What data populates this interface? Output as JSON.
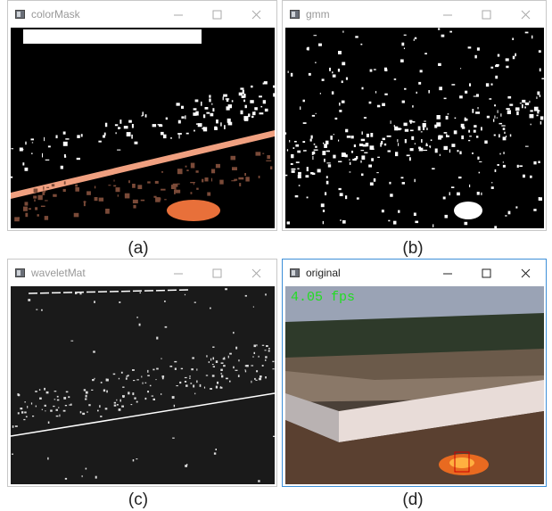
{
  "windows": [
    {
      "title": "colorMask",
      "caption": "(a)"
    },
    {
      "title": "gmm",
      "caption": "(b)"
    },
    {
      "title": "waveletMat",
      "caption": "(c)"
    },
    {
      "title": "original",
      "caption": "(d)",
      "overlay": "4.05 fps"
    }
  ]
}
